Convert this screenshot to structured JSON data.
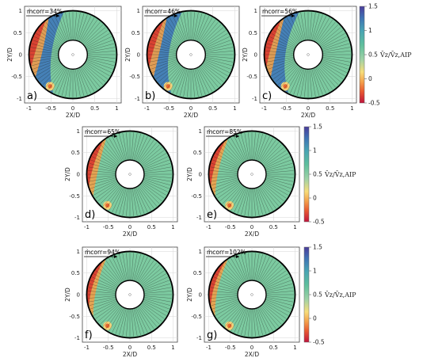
{
  "chart_data": {
    "type": "heatmap",
    "quantity_label": "V̄z/V̄z,AIP",
    "colorbar": {
      "range": [
        -0.5,
        1.5
      ],
      "ticks": [
        "1.5",
        "1",
        "0.5",
        "0",
        "-0.5"
      ],
      "colors": [
        "#c0143c",
        "#e85a32",
        "#f4a24c",
        "#f7dd7a",
        "#9fd2a6",
        "#5fbf9c",
        "#47a3b4",
        "#3f73b4",
        "#4a3c9a"
      ]
    },
    "axes": {
      "xlabel": "2X/D",
      "ylabel": "2Y/D",
      "xlim": [
        -1.1,
        1.1
      ],
      "ylim": [
        -1.1,
        1.1
      ],
      "xticks": [
        "-1",
        "-0.5",
        "0",
        "0.5",
        "1"
      ],
      "yticks": [
        "1",
        "0.5",
        "0",
        "-0.5",
        "-1"
      ]
    },
    "mass_flow_symbol": "ṁcorr",
    "panels": [
      {
        "label": "a)",
        "mass_flow": "=34%",
        "mass_flow_percent": 34
      },
      {
        "label": "b)",
        "mass_flow": "=46%",
        "mass_flow_percent": 46
      },
      {
        "label": "c)",
        "mass_flow": "=56%",
        "mass_flow_percent": 56
      },
      {
        "label": "d)",
        "mass_flow": "=65%",
        "mass_flow_percent": 65
      },
      {
        "label": "e)",
        "mass_flow": "=85%",
        "mass_flow_percent": 85
      },
      {
        "label": "f)",
        "mass_flow": "=94%",
        "mass_flow_percent": 94
      },
      {
        "label": "g)",
        "mass_flow": "=102%",
        "mass_flow_percent": 102
      }
    ]
  }
}
